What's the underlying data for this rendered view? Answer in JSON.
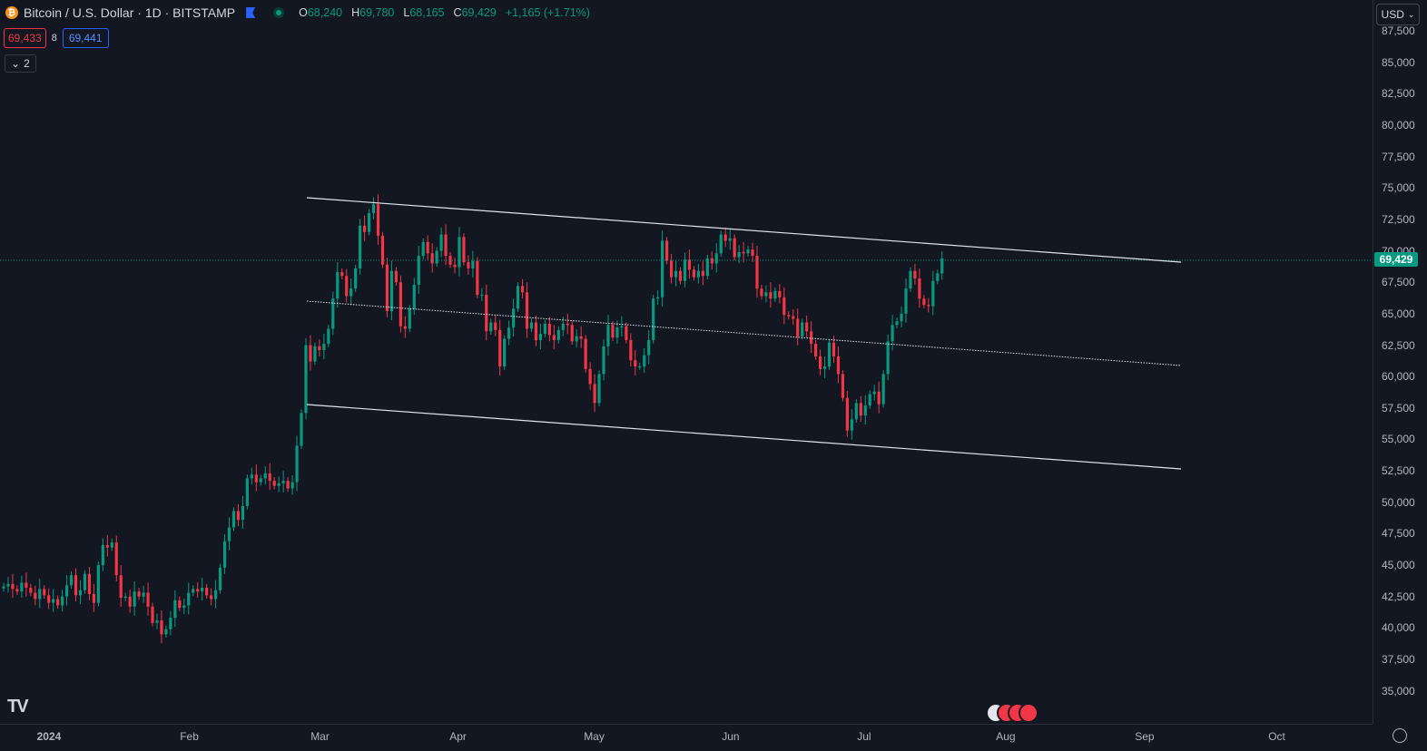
{
  "header": {
    "symbol_title": "Bitcoin / U.S. Dollar · 1D · BITSTAMP",
    "coin_icon": "bitcoin-icon",
    "ohlc": [
      {
        "key": "O",
        "value": "68,240"
      },
      {
        "key": "H",
        "value": "69,780"
      },
      {
        "key": "L",
        "value": "68,165"
      },
      {
        "key": "C",
        "value": "69,429"
      }
    ],
    "change": "+1,165 (+1.71%)",
    "bid": "69,433",
    "spread": "8",
    "ask": "69,441",
    "indicators_collapsed": "2",
    "currency": "USD"
  },
  "colors": {
    "up": "#089981",
    "down": "#f23645",
    "background": "#131722",
    "trendline": "#e0e3eb"
  },
  "chart_data": {
    "type": "candlestick",
    "price_tick_labels": [
      "87,500",
      "85,000",
      "82,500",
      "80,000",
      "77,500",
      "75,000",
      "72,500",
      "70,000",
      "67,500",
      "65,000",
      "62,500",
      "60,000",
      "57,500",
      "55,000",
      "52,500",
      "50,000",
      "47,500",
      "45,000",
      "42,500",
      "40,000",
      "37,500",
      "35,000"
    ],
    "time_tick_labels": [
      "2024",
      "Feb",
      "Mar",
      "Apr",
      "May",
      "Jun",
      "Jul",
      "Aug",
      "Sep",
      "Oct"
    ],
    "last_price": "69,429",
    "ylim": [
      33500,
      88000
    ],
    "xlim_days": [
      "2023-12-26",
      "2024-10-31"
    ],
    "candles_close": [
      43300,
      43500,
      43100,
      42900,
      43600,
      43200,
      42800,
      42300,
      43100,
      42600,
      42000,
      42300,
      41800,
      42500,
      43400,
      44200,
      42600,
      43000,
      44300,
      42700,
      42000,
      45000,
      46600,
      46400,
      46800,
      44200,
      42400,
      42500,
      41700,
      42900,
      42500,
      42800,
      41700,
      40400,
      40600,
      39500,
      39900,
      40800,
      42200,
      41600,
      41800,
      42800,
      43100,
      42900,
      43200,
      42600,
      42300,
      43000,
      44800,
      46900,
      48000,
      49300,
      48600,
      49700,
      51900,
      52200,
      51600,
      51900,
      52300,
      51700,
      51300,
      51500,
      51700,
      51100,
      51600,
      54500,
      57100,
      62500,
      61200,
      62400,
      62100,
      62600,
      63800,
      66200,
      68300,
      68000,
      66400,
      67000,
      68600,
      72000,
      71500,
      73000,
      73700,
      71200,
      68900,
      65200,
      68400,
      67500,
      64000,
      63800,
      65400,
      67300,
      69600,
      70700,
      69800,
      69000,
      70000,
      71300,
      69600,
      68900,
      68700,
      71100,
      69100,
      68600,
      69200,
      66500,
      66500,
      63600,
      64300,
      63700,
      60800,
      63000,
      63900,
      65400,
      67200,
      66700,
      63800,
      64300,
      62900,
      63400,
      64200,
      63300,
      62900,
      63700,
      64200,
      64100,
      62800,
      63200,
      63000,
      60600,
      59400,
      57900,
      60200,
      62400,
      64100,
      63100,
      63900,
      64000,
      62900,
      61300,
      60800,
      60800,
      61700,
      62900,
      66200,
      66300,
      70800,
      69200,
      67900,
      68400,
      67600,
      69300,
      68500,
      67900,
      68400,
      68000,
      69400,
      69000,
      69800,
      71300,
      70800,
      71000,
      69500,
      69900,
      69800,
      70100,
      69600,
      67000,
      66400,
      66700,
      66200,
      66800,
      66300,
      64900,
      64800,
      64600,
      63200,
      64300,
      63600,
      62600,
      61600,
      60600,
      60800,
      62700,
      61600,
      60200,
      58300,
      55700,
      56600,
      57900,
      56900,
      57700,
      58600,
      58800,
      57800,
      60200,
      62800,
      64100,
      64400,
      65000,
      67000,
      68400,
      67800,
      66200,
      65700,
      65600,
      67600,
      68200,
      69400
    ]
  }
}
